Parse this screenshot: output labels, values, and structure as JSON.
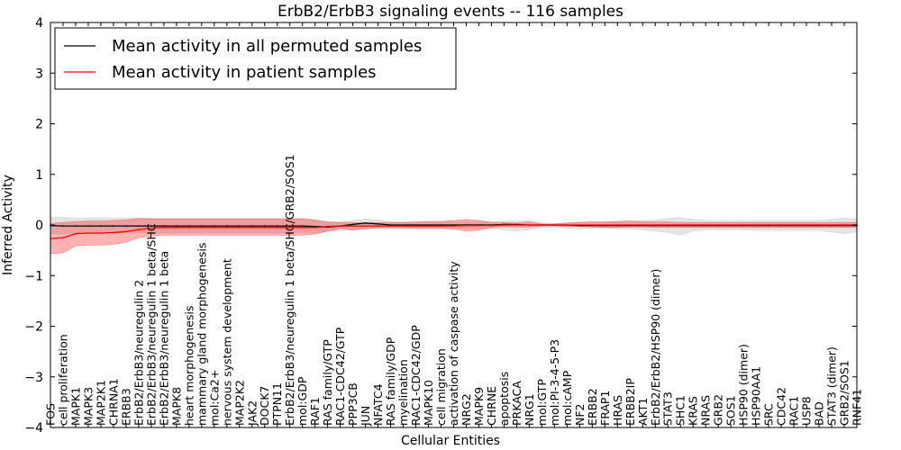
{
  "chart_data": {
    "type": "line",
    "title": "ErbB2/ErbB3 signaling events -- 116 samples",
    "xlabel": "Cellular Entities",
    "ylabel": "Inferred Activity",
    "ylim": [
      -4,
      4
    ],
    "yticks": [
      -4,
      -3,
      -2,
      -1,
      0,
      1,
      2,
      3,
      4
    ],
    "ytick_labels": [
      "−4",
      "−3",
      "−2",
      "−1",
      "0",
      "1",
      "2",
      "3",
      "4"
    ],
    "grid": false,
    "legend_position": "top-left",
    "categories": [
      "FOS",
      "cell proliferation",
      "MAPK1",
      "MAPK3",
      "MAP2K1",
      "CHRNA1",
      "ERBB3",
      "ErbB2/ErbB3/neuregulin 2",
      "ErbB2/ErbB3/neuregulin 1 beta/SHC",
      "ErbB2/ErbB3/neuregulin 1 beta",
      "MAPK8",
      "heart morphogenesis",
      "mammary gland morphogenesis",
      "mol:Ca2+",
      "nervous system development",
      "MAP2K2",
      "JAK2",
      "DOCK7",
      "PTPN11",
      "ErbB2/ErbB3/neuregulin 1 beta/SHC/GRB2/SOS1",
      "mol:GDP",
      "RAF1",
      "RAS family/GTP",
      "RAC1-CDC42/GTP",
      "PPP3CB",
      "JUN",
      "NFATC4",
      "RAS family/GDP",
      "myelination",
      "RAC1-CDC42/GDP",
      "MAPK10",
      "cell migration",
      "activation of caspase activity",
      "NRG2",
      "MAPK9",
      "CHRNE",
      "apoptosis",
      "PRKACA",
      "NRG1",
      "mol:GTP",
      "mol:PI-3-4-5-P3",
      "mol:cAMP",
      "NF2",
      "ERBB2",
      "FRAP1",
      "HRAS",
      "ERBB2IP",
      "AKT1",
      "ErbB2/ErbB2/HSP90 (dimer)",
      "STAT3",
      "SHC1",
      "KRAS",
      "NRAS",
      "GRB2",
      "SOS1",
      "HSP90 (dimer)",
      "HSP90AA1",
      "SRC",
      "CDC42",
      "RAC1",
      "USP8",
      "BAD",
      "STAT3 (dimer)",
      "GRB2/SOS1",
      "RNF41"
    ],
    "series": [
      {
        "name": "Mean activity in all permuted samples",
        "color": "#000000",
        "band_color": "#bbbbbb",
        "values": [
          -0.01,
          -0.02,
          -0.02,
          -0.02,
          -0.02,
          -0.02,
          -0.02,
          -0.02,
          -0.02,
          -0.02,
          -0.02,
          -0.02,
          -0.02,
          -0.02,
          -0.02,
          -0.02,
          -0.02,
          -0.02,
          -0.02,
          -0.02,
          -0.02,
          -0.03,
          -0.04,
          -0.02,
          0.01,
          0.04,
          0.02,
          0.0,
          0.0,
          0.0,
          0.0,
          0.0,
          0.0,
          0.0,
          0.0,
          0.0,
          0.01,
          0.01,
          0.0,
          0.0,
          0.0,
          0.0,
          -0.01,
          -0.01,
          -0.01,
          -0.01,
          -0.01,
          -0.01,
          -0.01,
          -0.01,
          -0.01,
          -0.01,
          -0.01,
          -0.01,
          -0.01,
          -0.01,
          -0.01,
          -0.01,
          -0.01,
          -0.01,
          -0.01,
          -0.01,
          -0.01,
          -0.01,
          -0.01
        ],
        "lower": [
          -0.17,
          -0.17,
          -0.16,
          -0.16,
          -0.16,
          -0.16,
          -0.15,
          -0.15,
          -0.16,
          -0.16,
          -0.16,
          -0.16,
          -0.16,
          -0.16,
          -0.16,
          -0.16,
          -0.16,
          -0.16,
          -0.16,
          -0.16,
          -0.15,
          -0.15,
          -0.13,
          -0.12,
          -0.1,
          -0.06,
          -0.05,
          -0.05,
          -0.05,
          -0.06,
          -0.06,
          -0.06,
          -0.07,
          -0.07,
          -0.07,
          -0.06,
          -0.1,
          -0.12,
          -0.1,
          -0.05,
          -0.04,
          -0.06,
          -0.08,
          -0.06,
          -0.06,
          -0.08,
          -0.08,
          -0.1,
          -0.12,
          -0.15,
          -0.2,
          -0.12,
          -0.1,
          -0.1,
          -0.1,
          -0.1,
          -0.11,
          -0.11,
          -0.11,
          -0.11,
          -0.11,
          -0.11,
          -0.14,
          -0.17,
          -0.14
        ],
        "upper": [
          0.16,
          0.16,
          0.14,
          0.14,
          0.14,
          0.14,
          0.14,
          0.14,
          0.14,
          0.14,
          0.14,
          0.14,
          0.14,
          0.14,
          0.14,
          0.14,
          0.14,
          0.14,
          0.14,
          0.14,
          0.14,
          0.1,
          0.06,
          0.07,
          0.09,
          0.12,
          0.1,
          0.07,
          0.06,
          0.06,
          0.06,
          0.06,
          0.06,
          0.06,
          0.06,
          0.07,
          0.08,
          0.09,
          0.09,
          0.05,
          0.03,
          0.05,
          0.06,
          0.06,
          0.06,
          0.07,
          0.08,
          0.09,
          0.1,
          0.13,
          0.15,
          0.11,
          0.09,
          0.09,
          0.09,
          0.09,
          0.09,
          0.09,
          0.09,
          0.09,
          0.09,
          0.09,
          0.11,
          0.14,
          0.11
        ]
      },
      {
        "name": "Mean activity in patient samples",
        "color": "#ff0000",
        "band_color": "#ff0000",
        "values": [
          -0.27,
          -0.25,
          -0.17,
          -0.16,
          -0.16,
          -0.15,
          -0.13,
          -0.09,
          -0.06,
          -0.05,
          -0.05,
          -0.05,
          -0.05,
          -0.05,
          -0.05,
          -0.05,
          -0.05,
          -0.05,
          -0.05,
          -0.05,
          -0.05,
          -0.05,
          -0.03,
          -0.02,
          -0.02,
          -0.02,
          -0.02,
          -0.02,
          -0.02,
          -0.02,
          -0.02,
          -0.02,
          -0.02,
          -0.01,
          -0.01,
          -0.01,
          0.0,
          0.0,
          0.0,
          0.0,
          0.0,
          0.0,
          0.0,
          0.0,
          0.0,
          0.0,
          0.0,
          0.0,
          0.0,
          0.0,
          0.0,
          0.0,
          0.0,
          0.0,
          0.0,
          0.0,
          0.0,
          0.0,
          0.0,
          0.0,
          0.0,
          0.0,
          0.0,
          0.0,
          0.0
        ],
        "lower": [
          -0.57,
          -0.55,
          -0.41,
          -0.4,
          -0.4,
          -0.38,
          -0.34,
          -0.25,
          -0.22,
          -0.2,
          -0.2,
          -0.2,
          -0.2,
          -0.2,
          -0.2,
          -0.2,
          -0.2,
          -0.2,
          -0.2,
          -0.2,
          -0.2,
          -0.18,
          -0.12,
          -0.07,
          -0.1,
          -0.08,
          -0.06,
          -0.06,
          -0.06,
          -0.07,
          -0.07,
          -0.07,
          -0.08,
          -0.12,
          -0.1,
          -0.05,
          -0.03,
          -0.04,
          -0.04,
          -0.02,
          -0.02,
          -0.03,
          -0.03,
          -0.04,
          -0.05,
          -0.05,
          -0.04,
          -0.04,
          -0.05,
          -0.05,
          -0.05,
          -0.05,
          -0.05,
          -0.05,
          -0.05,
          -0.05,
          -0.05,
          -0.05,
          -0.05,
          -0.05,
          -0.05,
          -0.05,
          -0.05,
          -0.05,
          -0.05
        ],
        "upper": [
          0.03,
          0.05,
          0.07,
          0.08,
          0.08,
          0.09,
          0.1,
          0.13,
          0.12,
          0.12,
          0.12,
          0.12,
          0.12,
          0.12,
          0.12,
          0.12,
          0.12,
          0.12,
          0.12,
          0.12,
          0.12,
          0.1,
          0.06,
          0.05,
          0.05,
          0.04,
          0.05,
          0.05,
          0.05,
          0.06,
          0.07,
          0.07,
          0.09,
          0.11,
          0.09,
          0.05,
          0.05,
          0.04,
          0.06,
          0.02,
          0.02,
          0.04,
          0.05,
          0.06,
          0.06,
          0.07,
          0.08,
          0.06,
          0.06,
          0.06,
          0.05,
          0.05,
          0.05,
          0.05,
          0.05,
          0.05,
          0.05,
          0.05,
          0.05,
          0.05,
          0.05,
          0.05,
          0.05,
          0.05,
          0.05
        ]
      }
    ]
  }
}
